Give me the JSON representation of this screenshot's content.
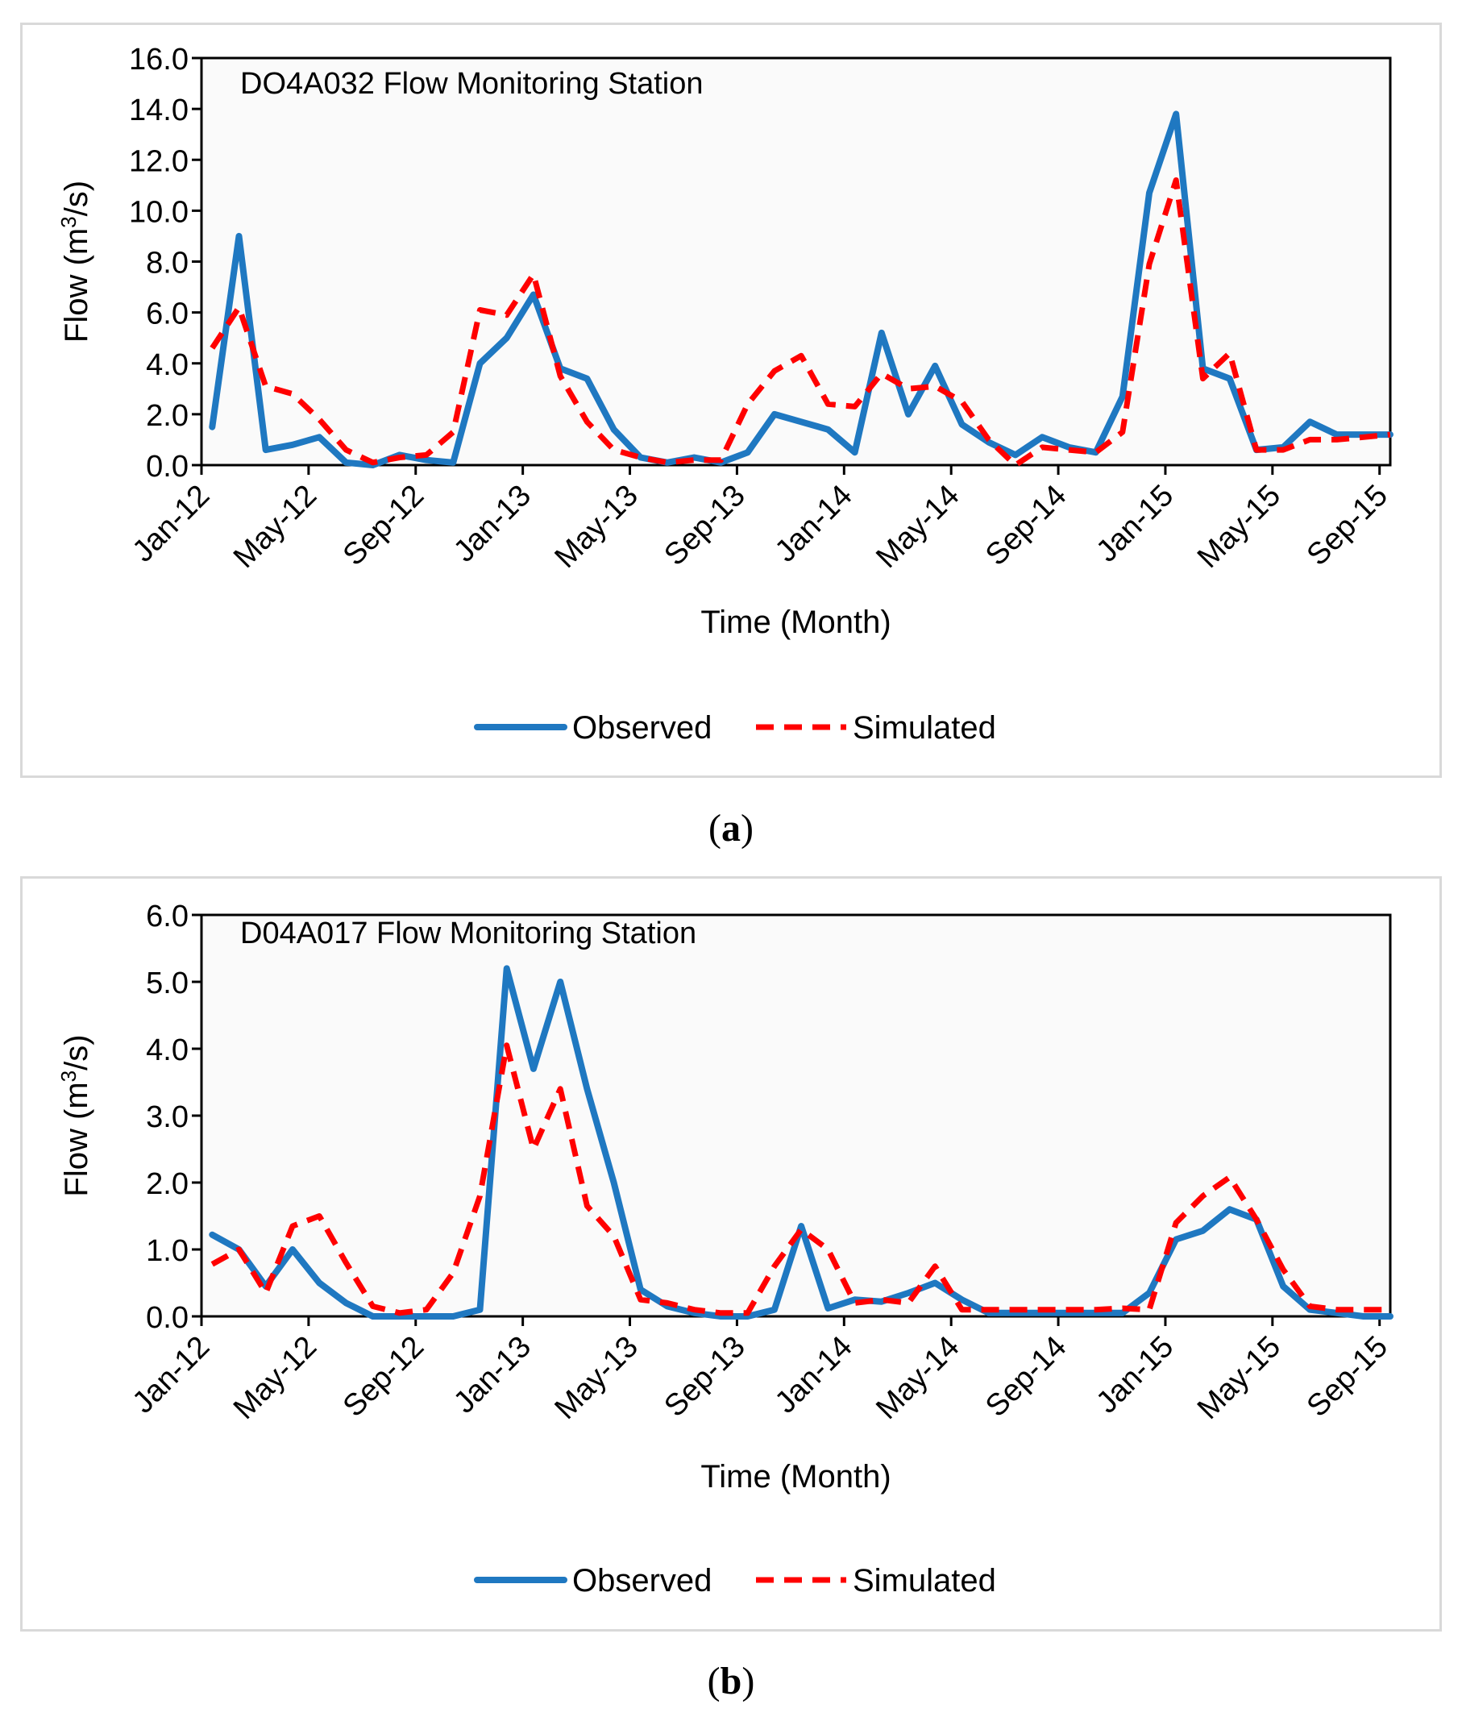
{
  "colors": {
    "observed": "#1F78C1",
    "simulated": "#FF0000",
    "frame": "#D9D9D9",
    "plot_bg": "#FAFAFA"
  },
  "chart_data": [
    {
      "type": "line",
      "panel_label": "a",
      "title": "DO4A032 Flow Monitoring Station",
      "xlabel": "Time (Month)",
      "ylabel_main": "Flow (m",
      "ylabel_sup": "3",
      "ylabel_end": "/s)",
      "ylim": [
        0,
        16
      ],
      "yticks": [
        "0.0",
        "2.0",
        "4.0",
        "6.0",
        "8.0",
        "10.0",
        "12.0",
        "14.0",
        "16.0"
      ],
      "xlim": [
        0,
        44.4
      ],
      "xticks": [
        {
          "label": "Jan-12",
          "x": 0
        },
        {
          "label": "May-12",
          "x": 4
        },
        {
          "label": "Sep-12",
          "x": 8
        },
        {
          "label": "Jan-13",
          "x": 12
        },
        {
          "label": "May-13",
          "x": 16
        },
        {
          "label": "Sep-13",
          "x": 20
        },
        {
          "label": "Jan-14",
          "x": 24
        },
        {
          "label": "May-14",
          "x": 28
        },
        {
          "label": "Sep-14",
          "x": 32
        },
        {
          "label": "Jan-15",
          "x": 36
        },
        {
          "label": "May-15",
          "x": 40
        },
        {
          "label": "Sep-15",
          "x": 44
        }
      ],
      "legend": [
        "Observed",
        "Simulated"
      ],
      "series": [
        {
          "name": "Observed",
          "x": [
            0.4,
            1.4,
            2.4,
            3.4,
            4.4,
            5.4,
            6.4,
            7.4,
            8.4,
            9.4,
            10.4,
            11.4,
            12.4,
            13.4,
            14.4,
            15.4,
            16.4,
            17.4,
            18.4,
            19.4,
            20.4,
            21.4,
            22.4,
            23.4,
            24.4,
            25.4,
            26.4,
            27.4,
            28.4,
            29.4,
            30.4,
            31.4,
            32.4,
            33.4,
            34.4,
            35.4,
            36.4,
            37.4,
            38.4,
            39.4,
            40.4,
            41.4,
            42.4,
            43.4,
            44.4
          ],
          "values": [
            1.5,
            9.0,
            0.6,
            0.8,
            1.1,
            0.1,
            0.0,
            0.4,
            0.2,
            0.1,
            4.0,
            5.0,
            6.7,
            3.8,
            3.4,
            1.4,
            0.3,
            0.1,
            0.3,
            0.1,
            0.5,
            2.0,
            1.7,
            1.4,
            0.5,
            5.2,
            2.0,
            3.9,
            1.6,
            0.9,
            0.4,
            1.1,
            0.7,
            0.5,
            2.7,
            10.7,
            13.8,
            3.8,
            3.4,
            0.6,
            0.7,
            1.7,
            1.2,
            1.2,
            1.2
          ]
        },
        {
          "name": "Simulated",
          "x": [
            0.4,
            1.4,
            2.4,
            3.4,
            4.4,
            5.4,
            6.4,
            7.4,
            8.4,
            9.4,
            10.4,
            11.4,
            12.4,
            13.4,
            14.4,
            15.4,
            16.4,
            17.4,
            18.4,
            19.4,
            20.4,
            21.4,
            22.4,
            23.4,
            24.4,
            25.4,
            26.4,
            27.4,
            28.4,
            29.4,
            30.4,
            31.4,
            32.4,
            33.4,
            34.4,
            35.4,
            36.4,
            37.4,
            38.4,
            39.4,
            40.4,
            41.4,
            42.4,
            43.4,
            44.4
          ],
          "values": [
            4.6,
            6.2,
            3.1,
            2.8,
            1.8,
            0.6,
            0.1,
            0.3,
            0.4,
            1.3,
            6.1,
            5.9,
            7.5,
            3.5,
            1.7,
            0.6,
            0.3,
            0.1,
            0.2,
            0.2,
            2.4,
            3.7,
            4.3,
            2.4,
            2.3,
            3.6,
            3.0,
            3.1,
            2.5,
            1.0,
            0.0,
            0.7,
            0.6,
            0.5,
            1.3,
            7.9,
            11.2,
            3.4,
            4.4,
            0.6,
            0.6,
            1.0,
            1.0,
            1.1,
            1.2
          ]
        }
      ]
    },
    {
      "type": "line",
      "panel_label": "b",
      "title": "D04A017 Flow Monitoring Station",
      "xlabel": "Time (Month)",
      "ylabel_main": "Flow (m",
      "ylabel_sup": "3",
      "ylabel_end": "/s)",
      "ylim": [
        0,
        6
      ],
      "yticks": [
        "0.0",
        "1.0",
        "2.0",
        "3.0",
        "4.0",
        "5.0",
        "6.0"
      ],
      "xlim": [
        0,
        44.4
      ],
      "xticks": [
        {
          "label": "Jan-12",
          "x": 0
        },
        {
          "label": "May-12",
          "x": 4
        },
        {
          "label": "Sep-12",
          "x": 8
        },
        {
          "label": "Jan-13",
          "x": 12
        },
        {
          "label": "May-13",
          "x": 16
        },
        {
          "label": "Sep-13",
          "x": 20
        },
        {
          "label": "Jan-14",
          "x": 24
        },
        {
          "label": "May-14",
          "x": 28
        },
        {
          "label": "Sep-14",
          "x": 32
        },
        {
          "label": "Jan-15",
          "x": 36
        },
        {
          "label": "May-15",
          "x": 40
        },
        {
          "label": "Sep-15",
          "x": 44
        }
      ],
      "legend": [
        "Observed",
        "Simulated"
      ],
      "series": [
        {
          "name": "Observed",
          "x": [
            0.4,
            1.4,
            2.4,
            3.4,
            4.4,
            5.4,
            6.4,
            7.4,
            8.4,
            9.4,
            10.4,
            11.4,
            12.4,
            13.4,
            14.4,
            15.4,
            16.4,
            17.4,
            18.4,
            19.4,
            20.4,
            21.4,
            22.4,
            23.4,
            24.4,
            25.4,
            26.4,
            27.4,
            28.4,
            29.4,
            30.4,
            31.4,
            32.4,
            33.4,
            34.4,
            35.4,
            36.4,
            37.4,
            38.4,
            39.4,
            40.4,
            41.4,
            42.4,
            43.4,
            44.4
          ],
          "values": [
            1.22,
            1.0,
            0.45,
            1.0,
            0.5,
            0.2,
            0.0,
            0.0,
            0.0,
            0.0,
            0.1,
            5.2,
            3.7,
            5.0,
            3.4,
            2.0,
            0.4,
            0.15,
            0.05,
            0.0,
            0.0,
            0.1,
            1.35,
            0.12,
            0.25,
            0.22,
            0.35,
            0.5,
            0.25,
            0.05,
            0.05,
            0.05,
            0.05,
            0.05,
            0.05,
            0.35,
            1.15,
            1.28,
            1.6,
            1.45,
            0.45,
            0.1,
            0.05,
            0.0,
            0.0
          ]
        },
        {
          "name": "Simulated",
          "x": [
            0.4,
            1.4,
            2.4,
            3.4,
            4.4,
            5.4,
            6.4,
            7.4,
            8.4,
            9.4,
            10.4,
            11.4,
            12.4,
            13.4,
            14.4,
            15.4,
            16.4,
            17.4,
            18.4,
            19.4,
            20.4,
            21.4,
            22.4,
            23.4,
            24.4,
            25.4,
            26.4,
            27.4,
            28.4,
            29.4,
            30.4,
            31.4,
            32.4,
            33.4,
            34.4,
            35.4,
            36.4,
            37.4,
            38.4,
            39.4,
            40.4,
            41.4,
            42.4,
            43.4,
            44.4
          ],
          "values": [
            0.78,
            1.0,
            0.35,
            1.35,
            1.5,
            0.8,
            0.15,
            0.05,
            0.1,
            0.65,
            1.8,
            4.05,
            2.5,
            3.4,
            1.65,
            1.2,
            0.25,
            0.2,
            0.1,
            0.05,
            0.05,
            0.75,
            1.3,
            1.0,
            0.2,
            0.25,
            0.2,
            0.75,
            0.1,
            0.1,
            0.1,
            0.1,
            0.1,
            0.1,
            0.12,
            0.1,
            1.4,
            1.8,
            2.08,
            1.45,
            0.7,
            0.15,
            0.1,
            0.1,
            0.1
          ]
        }
      ]
    }
  ]
}
